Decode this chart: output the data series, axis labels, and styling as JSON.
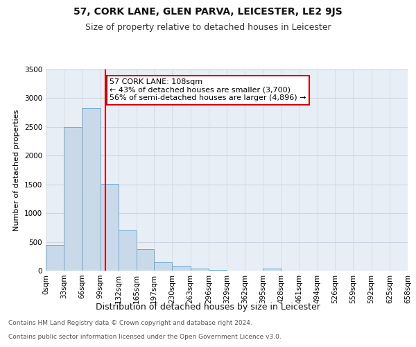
{
  "title": "57, CORK LANE, GLEN PARVA, LEICESTER, LE2 9JS",
  "subtitle": "Size of property relative to detached houses in Leicester",
  "xlabel": "Distribution of detached houses by size in Leicester",
  "ylabel": "Number of detached properties",
  "bin_edges": [
    0,
    33,
    66,
    99,
    132,
    165,
    197,
    230,
    263,
    296,
    329,
    362,
    395,
    428,
    461,
    494,
    526,
    559,
    592,
    625,
    658
  ],
  "bar_heights": [
    450,
    2500,
    2820,
    1510,
    700,
    380,
    150,
    80,
    40,
    15,
    5,
    0,
    40,
    5,
    0,
    0,
    0,
    0,
    0,
    0
  ],
  "bar_color": "#c8daea",
  "bar_edge_color": "#6aaad4",
  "vline_x": 108,
  "vline_color": "#cc0000",
  "annotation_text": "57 CORK LANE: 108sqm\n← 43% of detached houses are smaller (3,700)\n56% of semi-detached houses are larger (4,896) →",
  "annotation_box_facecolor": "#ffffff",
  "annotation_box_edgecolor": "#cc0000",
  "ylim": [
    0,
    3500
  ],
  "yticks": [
    0,
    500,
    1000,
    1500,
    2000,
    2500,
    3000,
    3500
  ],
  "grid_color": "#cdd5e0",
  "background_color": "#e8eef5",
  "footer_line1": "Contains HM Land Registry data © Crown copyright and database right 2024.",
  "footer_line2": "Contains public sector information licensed under the Open Government Licence v3.0.",
  "title_fontsize": 10,
  "subtitle_fontsize": 9,
  "xlabel_fontsize": 9,
  "ylabel_fontsize": 8,
  "tick_fontsize": 7.5,
  "annotation_fontsize": 8,
  "footer_fontsize": 6.5
}
